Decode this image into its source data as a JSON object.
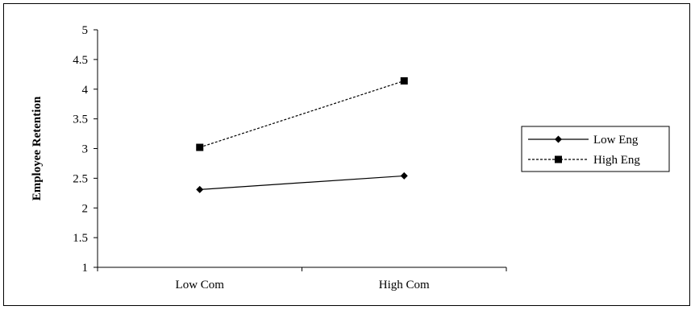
{
  "chart_data": {
    "type": "line",
    "title": "",
    "xlabel": "",
    "ylabel": "Employee Retention",
    "categories": [
      "Low Com",
      "High Com"
    ],
    "ylim": [
      1,
      5
    ],
    "yticks": [
      "1",
      "1.5",
      "2",
      "2.5",
      "3",
      "3.5",
      "4",
      "4.5",
      "5"
    ],
    "grid": false,
    "legend_position": "right",
    "series": [
      {
        "name": "Low Eng",
        "values": [
          2.31,
          2.54
        ],
        "line_style": "solid",
        "marker": "diamond",
        "color": "#000000"
      },
      {
        "name": "High Eng",
        "values": [
          3.02,
          4.14
        ],
        "line_style": "dashed",
        "marker": "square",
        "color": "#000000"
      }
    ]
  }
}
